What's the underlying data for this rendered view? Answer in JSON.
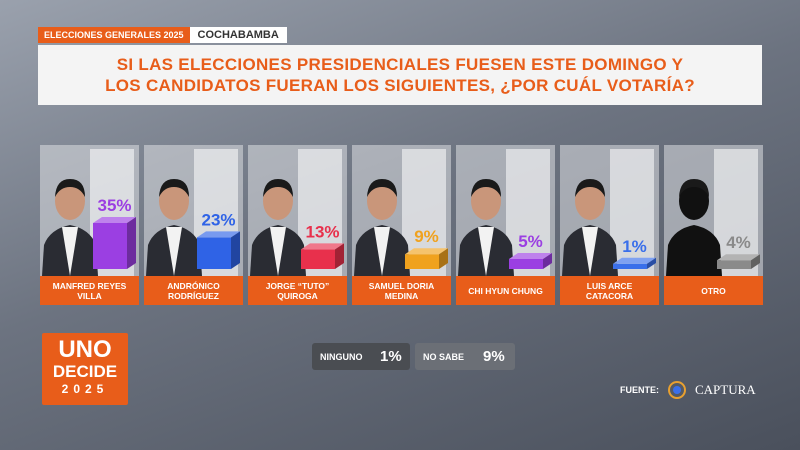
{
  "header": {
    "tag": "ELECCIONES GENERALES 2025",
    "region": "COCHABAMBA"
  },
  "chart_data": {
    "type": "bar",
    "title": "SI LAS ELECCIONES PRESIDENCIALES FUESEN ESTE DOMINGO Y LOS CANDIDATOS FUERAN LOS SIGUIENTES, ¿POR CUÁL VOTARÍA?",
    "categories": [
      "MANFRED REYES VILLA",
      "ANDRÓNICO RODRÍGUEZ",
      "JORGE “TUTO” QUIROGA",
      "SAMUEL DORIA MEDINA",
      "CHI HYUN CHUNG",
      "LUIS ARCE CATACORA",
      "OTRO"
    ],
    "values": [
      35,
      23,
      13,
      9,
      5,
      1,
      4
    ],
    "value_labels": [
      "35%",
      "23%",
      "13%",
      "9%",
      "5%",
      "1%",
      "4%"
    ],
    "colors": [
      "#9b3fe2",
      "#2f63e6",
      "#e8304c",
      "#f0a21e",
      "#9b3fe2",
      "#3a6fea",
      "#8a8a8a"
    ]
  },
  "other_answers": [
    {
      "label": "NINGUNO",
      "result": "1%"
    },
    {
      "label": "NO SABE",
      "result": "9%"
    }
  ],
  "logo": {
    "line1": "UNO",
    "line2": "DECIDE",
    "line3": "2025"
  },
  "source": {
    "label": "FUENTE:",
    "name": "CAPTURA"
  }
}
